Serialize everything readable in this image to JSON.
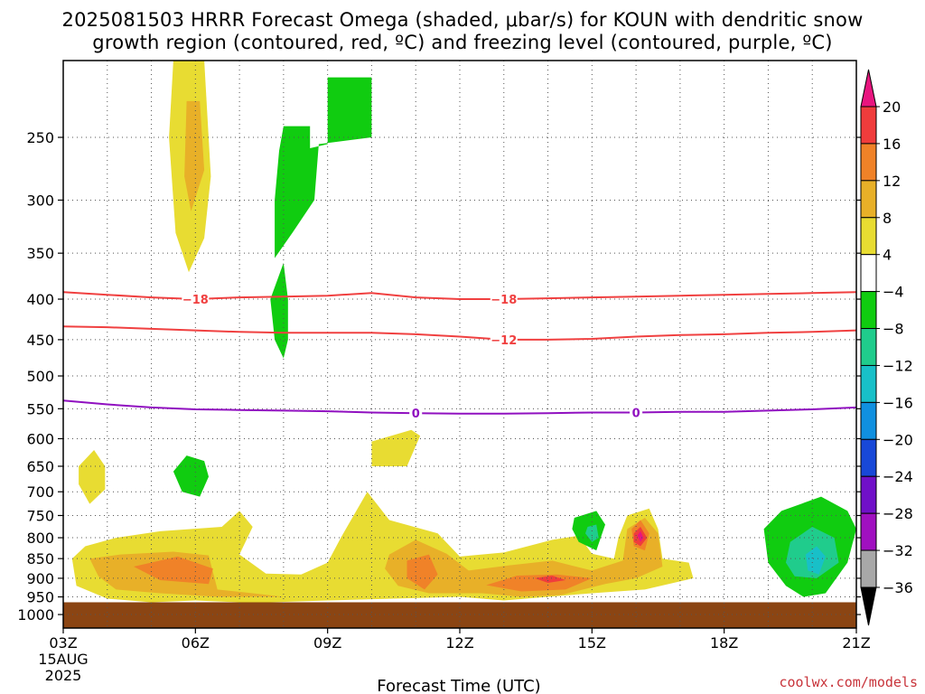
{
  "title_line1": "2025081503 HRRR Forecast Omega (shaded, μbar/s) for KOUN with dendritic snow",
  "title_line2": "growth region (contoured, red, ºC) and freezing level (contoured, purple, ºC)",
  "credit": "coolwx.com/models",
  "chart_data": {
    "type": "heatmap",
    "title": "2025081503 HRRR Forecast Omega (shaded, μbar/s) for KOUN with dendritic snow growth region (contoured, red, ºC) and freezing level (contoured, purple, ºC)",
    "xlabel": "Forecast Time (UTC)",
    "ylabel": "",
    "x_unit": "hour UTC",
    "xlim": [
      3,
      21
    ],
    "x_ticks": [
      {
        "v": 3,
        "label": "03Z",
        "sub": [
          "15AUG",
          "2025"
        ]
      },
      {
        "v": 6,
        "label": "06Z"
      },
      {
        "v": 9,
        "label": "09Z"
      },
      {
        "v": 12,
        "label": "12Z"
      },
      {
        "v": 15,
        "label": "15Z"
      },
      {
        "v": 18,
        "label": "18Z"
      },
      {
        "v": 21,
        "label": "21Z"
      }
    ],
    "y_unit": "hPa",
    "ylim": [
      1040,
      200
    ],
    "y_scale": "log",
    "y_ticks": [
      250,
      300,
      350,
      400,
      450,
      500,
      550,
      600,
      650,
      700,
      750,
      800,
      850,
      900,
      950,
      1000
    ],
    "grid": true,
    "ground_level_hPa": 965,
    "ground_color": "#8b4513",
    "colorbar": {
      "position": "right",
      "labels": [
        "20",
        "16",
        "12",
        "8",
        "4",
        "−4",
        "−8",
        "−12",
        "−16",
        "−20",
        "−24",
        "−28",
        "−32",
        "−36"
      ],
      "colors": [
        "#e8157f",
        "#f03c3c",
        "#f08228",
        "#e8b028",
        "#e8dc32",
        "#ffffff",
        "#10cc10",
        "#20cc8c",
        "#18c0c8",
        "#1090e0",
        "#1848d8",
        "#7010c8",
        "#a010c0",
        "#a8a8a8",
        "#000000"
      ]
    },
    "shaded_regions": [
      {
        "value": 4,
        "color": "#e8dc32",
        "points": [
          [
            5.5,
            200
          ],
          [
            6.2,
            200
          ],
          [
            6.35,
            280
          ],
          [
            6.2,
            335
          ],
          [
            5.85,
            370
          ],
          [
            5.55,
            330
          ],
          [
            5.4,
            250
          ]
        ]
      },
      {
        "value": 8,
        "color": "#e8b028",
        "points": [
          [
            5.8,
            225
          ],
          [
            6.1,
            225
          ],
          [
            6.2,
            275
          ],
          [
            5.9,
            310
          ],
          [
            5.75,
            280
          ]
        ]
      },
      {
        "value": -4,
        "color": "#10cc10",
        "points": [
          [
            8.0,
            242
          ],
          [
            8.6,
            242
          ],
          [
            8.6,
            258
          ],
          [
            9.0,
            255
          ],
          [
            9.0,
            210
          ],
          [
            10.0,
            210
          ],
          [
            10.0,
            250
          ],
          [
            8.8,
            255
          ],
          [
            8.7,
            300
          ],
          [
            8.2,
            330
          ],
          [
            7.8,
            355
          ],
          [
            7.8,
            300
          ],
          [
            7.9,
            260
          ]
        ]
      },
      {
        "value": -4,
        "color": "#10cc10",
        "points": [
          [
            8.0,
            360
          ],
          [
            8.1,
            400
          ],
          [
            8.1,
            450
          ],
          [
            8.0,
            475
          ],
          [
            7.8,
            450
          ],
          [
            7.7,
            400
          ]
        ]
      },
      {
        "value": 4,
        "color": "#e8dc32",
        "points": [
          [
            10.0,
            605
          ],
          [
            10.9,
            585
          ],
          [
            11.1,
            595
          ],
          [
            10.8,
            650
          ],
          [
            10.0,
            650
          ]
        ]
      },
      {
        "value": 4,
        "color": "#e8dc32",
        "points": [
          [
            3.7,
            620
          ],
          [
            3.95,
            650
          ],
          [
            3.95,
            695
          ],
          [
            3.6,
            725
          ],
          [
            3.35,
            685
          ],
          [
            3.35,
            650
          ]
        ]
      },
      {
        "value": -4,
        "color": "#10cc10",
        "points": [
          [
            5.8,
            630
          ],
          [
            6.2,
            640
          ],
          [
            6.3,
            670
          ],
          [
            6.1,
            710
          ],
          [
            5.7,
            700
          ],
          [
            5.5,
            660
          ]
        ]
      },
      {
        "value": 4,
        "color": "#e8dc32",
        "points": [
          [
            3.5,
            820
          ],
          [
            4.2,
            800
          ],
          [
            5.2,
            785
          ],
          [
            6.6,
            775
          ],
          [
            7.0,
            740
          ],
          [
            7.3,
            775
          ],
          [
            7.0,
            840
          ],
          [
            7.6,
            888
          ],
          [
            8.4,
            890
          ],
          [
            9.0,
            860
          ],
          [
            9.3,
            800
          ],
          [
            9.9,
            700
          ],
          [
            10.4,
            760
          ],
          [
            11.5,
            790
          ],
          [
            12.0,
            845
          ],
          [
            13.0,
            835
          ],
          [
            14.1,
            805
          ],
          [
            14.7,
            795
          ],
          [
            15.0,
            838
          ],
          [
            15.5,
            850
          ],
          [
            15.6,
            800
          ],
          [
            15.8,
            750
          ],
          [
            16.3,
            735
          ],
          [
            16.5,
            780
          ],
          [
            16.6,
            850
          ],
          [
            17.2,
            860
          ],
          [
            17.3,
            900
          ],
          [
            16.2,
            930
          ],
          [
            15.0,
            940
          ],
          [
            14.0,
            950
          ],
          [
            13.0,
            960
          ],
          [
            12.0,
            950
          ],
          [
            10.5,
            955
          ],
          [
            9.0,
            960
          ],
          [
            7.7,
            965
          ],
          [
            7.0,
            965
          ],
          [
            6.0,
            960
          ],
          [
            5.0,
            965
          ],
          [
            4.0,
            955
          ],
          [
            3.3,
            920
          ],
          [
            3.2,
            850
          ]
        ]
      },
      {
        "value": 8,
        "color": "#e8b028",
        "points": [
          [
            3.6,
            850
          ],
          [
            4.3,
            840
          ],
          [
            5.5,
            833
          ],
          [
            6.3,
            842
          ],
          [
            6.5,
            930
          ],
          [
            7.3,
            940
          ],
          [
            8.0,
            950
          ],
          [
            6.5,
            950
          ],
          [
            5.2,
            940
          ],
          [
            4.2,
            930
          ],
          [
            3.8,
            895
          ]
        ]
      },
      {
        "value": 8,
        "color": "#e8b028",
        "points": [
          [
            10.4,
            840
          ],
          [
            11.0,
            805
          ],
          [
            11.7,
            838
          ],
          [
            12.2,
            880
          ],
          [
            13.1,
            867
          ],
          [
            14.1,
            855
          ],
          [
            15.0,
            880
          ],
          [
            15.7,
            855
          ],
          [
            15.8,
            780
          ],
          [
            16.2,
            755
          ],
          [
            16.5,
            790
          ],
          [
            16.6,
            870
          ],
          [
            16.0,
            900
          ],
          [
            15.3,
            915
          ],
          [
            14.3,
            945
          ],
          [
            13.4,
            950
          ],
          [
            12.5,
            940
          ],
          [
            11.3,
            940
          ],
          [
            10.6,
            920
          ],
          [
            10.3,
            875
          ]
        ]
      },
      {
        "value": 12,
        "color": "#f08228",
        "points": [
          [
            4.6,
            870
          ],
          [
            5.6,
            845
          ],
          [
            6.4,
            875
          ],
          [
            6.3,
            915
          ],
          [
            5.2,
            905
          ]
        ]
      },
      {
        "value": 12,
        "color": "#f08228",
        "points": [
          [
            10.8,
            855
          ],
          [
            11.3,
            840
          ],
          [
            11.5,
            890
          ],
          [
            11.2,
            930
          ],
          [
            10.8,
            900
          ]
        ]
      },
      {
        "value": 12,
        "color": "#f08228",
        "points": [
          [
            13.3,
            893
          ],
          [
            14.2,
            890
          ],
          [
            15.0,
            900
          ],
          [
            14.4,
            930
          ],
          [
            13.4,
            935
          ],
          [
            12.6,
            918
          ]
        ]
      },
      {
        "value": 12,
        "color": "#f08228",
        "points": [
          [
            15.9,
            780
          ],
          [
            16.1,
            760
          ],
          [
            16.3,
            790
          ],
          [
            16.2,
            830
          ],
          [
            15.95,
            820
          ]
        ]
      },
      {
        "value": 16,
        "color": "#f03c3c",
        "points": [
          [
            13.7,
            900
          ],
          [
            14.1,
            893
          ],
          [
            14.4,
            905
          ],
          [
            14.0,
            912
          ]
        ]
      },
      {
        "value": 16,
        "color": "#f03c3c",
        "points": [
          [
            15.95,
            790
          ],
          [
            16.1,
            775
          ],
          [
            16.25,
            800
          ],
          [
            16.1,
            820
          ],
          [
            15.95,
            810
          ]
        ]
      },
      {
        "value": 20,
        "color": "#e8157f",
        "points": [
          [
            16.03,
            795
          ],
          [
            16.1,
            785
          ],
          [
            16.17,
            800
          ],
          [
            16.1,
            810
          ]
        ]
      },
      {
        "value": -4,
        "color": "#10cc10",
        "points": [
          [
            14.6,
            755
          ],
          [
            15.1,
            740
          ],
          [
            15.3,
            770
          ],
          [
            15.1,
            830
          ],
          [
            14.7,
            810
          ],
          [
            14.55,
            780
          ]
        ]
      },
      {
        "value": -8,
        "color": "#20cc8c",
        "points": [
          [
            14.9,
            775
          ],
          [
            15.1,
            770
          ],
          [
            15.15,
            800
          ],
          [
            15.0,
            810
          ],
          [
            14.85,
            790
          ]
        ]
      },
      {
        "value": -4,
        "color": "#10cc10",
        "points": [
          [
            19.3,
            740
          ],
          [
            20.2,
            710
          ],
          [
            20.8,
            740
          ],
          [
            21.0,
            780
          ],
          [
            20.8,
            860
          ],
          [
            20.3,
            940
          ],
          [
            19.8,
            950
          ],
          [
            19.4,
            920
          ],
          [
            19.0,
            860
          ],
          [
            18.9,
            780
          ]
        ]
      },
      {
        "value": -8,
        "color": "#20cc8c",
        "points": [
          [
            19.5,
            810
          ],
          [
            20.0,
            775
          ],
          [
            20.5,
            800
          ],
          [
            20.6,
            860
          ],
          [
            20.1,
            900
          ],
          [
            19.6,
            895
          ],
          [
            19.4,
            860
          ]
        ]
      },
      {
        "value": -12,
        "color": "#18c0c8",
        "points": [
          [
            19.85,
            840
          ],
          [
            20.1,
            820
          ],
          [
            20.3,
            845
          ],
          [
            20.15,
            890
          ],
          [
            19.9,
            880
          ]
        ]
      }
    ],
    "contours": [
      {
        "name": "-18",
        "label": "−18",
        "color": "#f04040",
        "x": [
          3,
          4,
          5,
          6,
          7,
          8,
          9,
          10,
          11,
          12,
          13,
          14,
          15,
          16,
          17,
          18,
          19,
          20,
          21
        ],
        "y": [
          392,
          395,
          398,
          400,
          398,
          397,
          396,
          393,
          398,
          400,
          400,
          399,
          398,
          397,
          396,
          395,
          394,
          393,
          392
        ],
        "label_x": [
          6.0,
          13.0
        ]
      },
      {
        "name": "-12",
        "label": "−12",
        "color": "#f04040",
        "x": [
          3,
          4,
          5,
          6,
          7,
          8,
          9,
          10,
          11,
          12,
          13,
          14,
          15,
          16,
          17,
          18,
          19,
          20,
          21
        ],
        "y": [
          433,
          434,
          436,
          438,
          440,
          441,
          441,
          441,
          443,
          446,
          450,
          450,
          449,
          446,
          444,
          443,
          441,
          440,
          438
        ],
        "label_x": [
          13.0
        ]
      },
      {
        "name": "0",
        "label": "0",
        "color": "#9010c0",
        "x": [
          3,
          4,
          5,
          6,
          7,
          8,
          9,
          10,
          11,
          12,
          13,
          14,
          15,
          16,
          17,
          18,
          19,
          20,
          21
        ],
        "y": [
          537,
          543,
          548,
          551,
          552,
          553,
          554,
          556,
          557,
          558,
          558,
          557,
          556,
          556,
          555,
          555,
          553,
          551,
          548
        ],
        "label_x": [
          11.0,
          16.0
        ]
      }
    ]
  }
}
